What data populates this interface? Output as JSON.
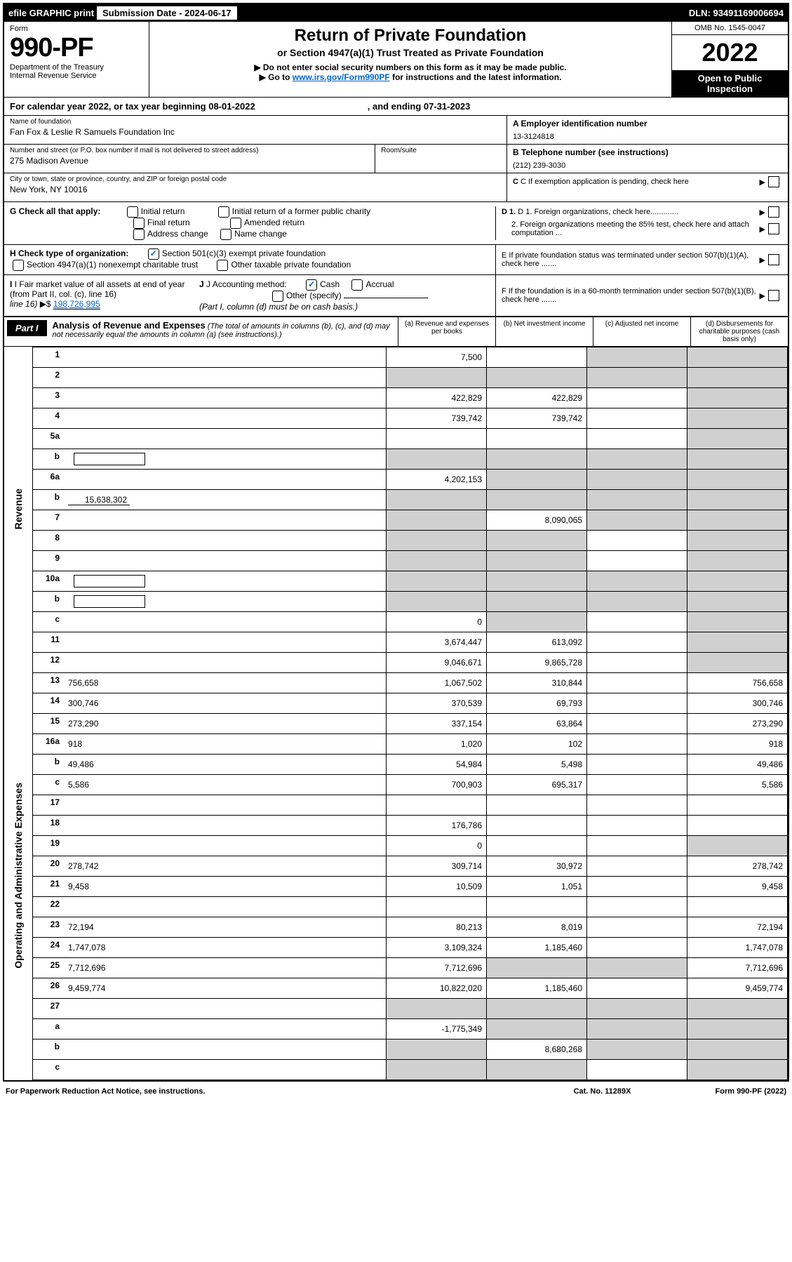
{
  "top": {
    "efile": "efile GRAPHIC print",
    "sub_label": "Submission Date - 2024-06-17",
    "dln": "DLN: 93491169006694"
  },
  "header": {
    "form_word": "Form",
    "form_num": "990-PF",
    "dept": "Department of the Treasury",
    "irs": "Internal Revenue Service",
    "title": "Return of Private Foundation",
    "subtitle": "or Section 4947(a)(1) Trust Treated as Private Foundation",
    "note1": "▶ Do not enter social security numbers on this form as it may be made public.",
    "note2_pre": "▶ Go to ",
    "note2_link": "www.irs.gov/Form990PF",
    "note2_post": " for instructions and the latest information.",
    "omb": "OMB No. 1545-0047",
    "year": "2022",
    "open": "Open to Public Inspection"
  },
  "calyear": {
    "text": "For calendar year 2022, or tax year beginning 08-01-2022",
    "ending": ", and ending 07-31-2023"
  },
  "foundation": {
    "name_label": "Name of foundation",
    "name": "Fan Fox & Leslie R Samuels Foundation Inc",
    "addr_label": "Number and street (or P.O. box number if mail is not delivered to street address)",
    "addr": "275 Madison Avenue",
    "room_label": "Room/suite",
    "city_label": "City or town, state or province, country, and ZIP or foreign postal code",
    "city": "New York, NY  10016"
  },
  "right_info": {
    "a_label": "A Employer identification number",
    "a_val": "13-3124818",
    "b_label": "B Telephone number (see instructions)",
    "b_val": "(212) 239-3030",
    "c_label": "C If exemption application is pending, check here",
    "d1": "D 1. Foreign organizations, check here.............",
    "d2": "2. Foreign organizations meeting the 85% test, check here and attach computation ...",
    "e": "E  If private foundation status was terminated under section 507(b)(1)(A), check here .......",
    "f": "F  If the foundation is in a 60-month termination under section 507(b)(1)(B), check here ......."
  },
  "g": {
    "label": "G Check all that apply:",
    "opts": [
      "Initial return",
      "Final return",
      "Address change",
      "Initial return of a former public charity",
      "Amended return",
      "Name change"
    ]
  },
  "h": {
    "label": "H Check type of organization:",
    "opt1": "Section 501(c)(3) exempt private foundation",
    "opt2": "Section 4947(a)(1) nonexempt charitable trust",
    "opt3": "Other taxable private foundation"
  },
  "i": {
    "label": "I Fair market value of all assets at end of year (from Part II, col. (c), line 16)",
    "arrow": "▶$",
    "val": "198,726,995"
  },
  "j": {
    "label": "J Accounting method:",
    "cash": "Cash",
    "accrual": "Accrual",
    "other": "Other (specify)",
    "note": "(Part I, column (d) must be on cash basis.)"
  },
  "part1": {
    "label": "Part I",
    "title": "Analysis of Revenue and Expenses",
    "desc": " (The total of amounts in columns (b), (c), and (d) may not necessarily equal the amounts in column (a) (see instructions).)",
    "col_a": "(a)   Revenue and expenses per books",
    "col_b": "(b)   Net investment income",
    "col_c": "(c)   Adjusted net income",
    "col_d": "(d)   Disbursements for charitable purposes (cash basis only)"
  },
  "side_labels": {
    "revenue": "Revenue",
    "expenses": "Operating and Administrative Expenses"
  },
  "rows": [
    {
      "n": "1",
      "d": "",
      "a": "7,500",
      "b": "",
      "c": "",
      "shade_c": true,
      "shade_d": true
    },
    {
      "n": "2",
      "d": "",
      "a": "",
      "b": "",
      "c": "",
      "shade_all": true
    },
    {
      "n": "3",
      "d": "",
      "a": "422,829",
      "b": "422,829",
      "c": "",
      "shade_d": true
    },
    {
      "n": "4",
      "d": "",
      "a": "739,742",
      "b": "739,742",
      "c": "",
      "shade_d": true
    },
    {
      "n": "5a",
      "d": "",
      "a": "",
      "b": "",
      "c": "",
      "shade_d": true
    },
    {
      "n": "b",
      "d": "",
      "a": "",
      "b": "",
      "c": "",
      "shade_all": true,
      "inline_box": true
    },
    {
      "n": "6a",
      "d": "",
      "a": "4,202,153",
      "b": "",
      "c": "",
      "shade_b": true,
      "shade_c": true,
      "shade_d": true
    },
    {
      "n": "b",
      "d": "",
      "a": "",
      "b": "",
      "c": "",
      "shade_all": true,
      "inline_val": "15,638,302"
    },
    {
      "n": "7",
      "d": "",
      "a": "",
      "b": "8,090,065",
      "c": "",
      "shade_a": true,
      "shade_c": true,
      "shade_d": true
    },
    {
      "n": "8",
      "d": "",
      "a": "",
      "b": "",
      "c": "",
      "shade_a": true,
      "shade_b": true,
      "shade_d": true
    },
    {
      "n": "9",
      "d": "",
      "a": "",
      "b": "",
      "c": "",
      "shade_a": true,
      "shade_b": true,
      "shade_d": true
    },
    {
      "n": "10a",
      "d": "",
      "a": "",
      "b": "",
      "c": "",
      "shade_all": true,
      "inline_box": true
    },
    {
      "n": "b",
      "d": "",
      "a": "",
      "b": "",
      "c": "",
      "shade_all": true,
      "inline_box": true
    },
    {
      "n": "c",
      "d": "",
      "a": "0",
      "b": "",
      "c": "",
      "shade_b": true,
      "shade_d": true
    },
    {
      "n": "11",
      "d": "",
      "a": "3,674,447",
      "b": "613,092",
      "c": "",
      "shade_d": true
    },
    {
      "n": "12",
      "d": "",
      "a": "9,046,671",
      "b": "9,865,728",
      "c": "",
      "shade_d": true
    },
    {
      "n": "13",
      "d": "756,658",
      "a": "1,067,502",
      "b": "310,844",
      "c": ""
    },
    {
      "n": "14",
      "d": "300,746",
      "a": "370,539",
      "b": "69,793",
      "c": ""
    },
    {
      "n": "15",
      "d": "273,290",
      "a": "337,154",
      "b": "63,864",
      "c": ""
    },
    {
      "n": "16a",
      "d": "918",
      "a": "1,020",
      "b": "102",
      "c": ""
    },
    {
      "n": "b",
      "d": "49,486",
      "a": "54,984",
      "b": "5,498",
      "c": ""
    },
    {
      "n": "c",
      "d": "5,586",
      "a": "700,903",
      "b": "695,317",
      "c": ""
    },
    {
      "n": "17",
      "d": "",
      "a": "",
      "b": "",
      "c": ""
    },
    {
      "n": "18",
      "d": "",
      "a": "176,786",
      "b": "",
      "c": ""
    },
    {
      "n": "19",
      "d": "",
      "a": "0",
      "b": "",
      "c": "",
      "shade_d": true
    },
    {
      "n": "20",
      "d": "278,742",
      "a": "309,714",
      "b": "30,972",
      "c": ""
    },
    {
      "n": "21",
      "d": "9,458",
      "a": "10,509",
      "b": "1,051",
      "c": ""
    },
    {
      "n": "22",
      "d": "",
      "a": "",
      "b": "",
      "c": ""
    },
    {
      "n": "23",
      "d": "72,194",
      "a": "80,213",
      "b": "8,019",
      "c": ""
    },
    {
      "n": "24",
      "d": "1,747,078",
      "a": "3,109,324",
      "b": "1,185,460",
      "c": ""
    },
    {
      "n": "25",
      "d": "7,712,696",
      "a": "7,712,696",
      "b": "",
      "c": "",
      "shade_b": true,
      "shade_c": true
    },
    {
      "n": "26",
      "d": "9,459,774",
      "a": "10,822,020",
      "b": "1,185,460",
      "c": ""
    },
    {
      "n": "27",
      "d": "",
      "a": "",
      "b": "",
      "c": "",
      "shade_all": true
    },
    {
      "n": "a",
      "d": "",
      "a": "-1,775,349",
      "b": "",
      "c": "",
      "shade_b": true,
      "shade_c": true,
      "shade_d": true
    },
    {
      "n": "b",
      "d": "",
      "a": "",
      "b": "8,680,268",
      "c": "",
      "shade_a": true,
      "shade_c": true,
      "shade_d": true
    },
    {
      "n": "c",
      "d": "",
      "a": "",
      "b": "",
      "c": "",
      "shade_a": true,
      "shade_b": true,
      "shade_d": true
    }
  ],
  "footer": {
    "left": "For Paperwork Reduction Act Notice, see instructions.",
    "cat": "Cat. No. 11289X",
    "form": "Form 990-PF (2022)"
  }
}
